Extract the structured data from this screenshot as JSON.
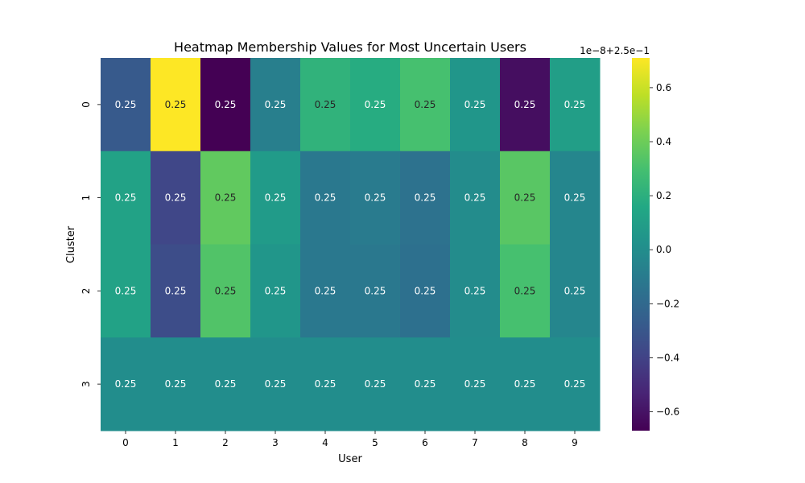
{
  "chart_data": {
    "type": "heatmap",
    "title": "Heatmap Membership Values for Most Uncertain Users",
    "xlabel": "User",
    "ylabel": "Cluster",
    "x_categories": [
      "0",
      "1",
      "2",
      "3",
      "4",
      "5",
      "6",
      "7",
      "8",
      "9"
    ],
    "y_categories": [
      "0",
      "1",
      "2",
      "3"
    ],
    "values": [
      [
        -0.28,
        0.71,
        -0.67,
        -0.08,
        0.22,
        0.18,
        0.3,
        0.05,
        -0.62,
        0.1
      ],
      [
        0.12,
        -0.38,
        0.37,
        0.08,
        -0.12,
        -0.1,
        -0.15,
        -0.01,
        0.35,
        -0.04
      ],
      [
        0.12,
        -0.35,
        0.33,
        0.05,
        -0.12,
        -0.12,
        -0.16,
        -0.01,
        0.3,
        -0.04
      ],
      [
        0.0,
        0.0,
        0.0,
        0.0,
        0.0,
        0.0,
        0.0,
        0.0,
        0.0,
        0.0
      ]
    ],
    "annotations": [
      [
        "0.25",
        "0.25",
        "0.25",
        "0.25",
        "0.25",
        "0.25",
        "0.25",
        "0.25",
        "0.25",
        "0.25"
      ],
      [
        "0.25",
        "0.25",
        "0.25",
        "0.25",
        "0.25",
        "0.25",
        "0.25",
        "0.25",
        "0.25",
        "0.25"
      ],
      [
        "0.25",
        "0.25",
        "0.25",
        "0.25",
        "0.25",
        "0.25",
        "0.25",
        "0.25",
        "0.25",
        "0.25"
      ],
      [
        "0.25",
        "0.25",
        "0.25",
        "0.25",
        "0.25",
        "0.25",
        "0.25",
        "0.25",
        "0.25",
        "0.25"
      ]
    ],
    "colorbar": {
      "colormap": "viridis",
      "vmin": -0.67,
      "vmax": 0.71,
      "ticks": [
        -0.6,
        -0.4,
        -0.2,
        0.0,
        0.2,
        0.4,
        0.6
      ],
      "tick_labels": [
        "−0.6",
        "−0.4",
        "−0.2",
        "0.0",
        "0.2",
        "0.4",
        "0.6"
      ],
      "offset_text": "1e−8+2.5e−1"
    },
    "grid": false
  }
}
